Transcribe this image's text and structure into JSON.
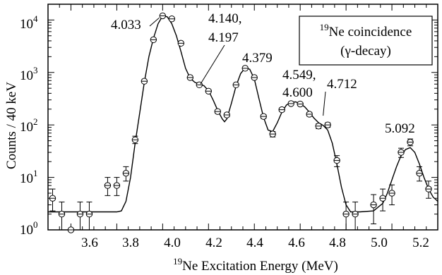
{
  "chart_data": {
    "type": "scatter",
    "xlabel_sup": "19",
    "xlabel_text": "Ne Excitation Energy (MeV)",
    "ylabel": "Counts / 40 keV",
    "xlim": [
      3.5,
      5.2
    ],
    "ylim_log10": [
      0,
      4.3
    ],
    "y_scale": "log",
    "grid": false,
    "x_ticks": [
      "3.6",
      "3.8",
      "4.0",
      "4.2",
      "4.4",
      "4.6",
      "4.8",
      "5.0",
      "5.2"
    ],
    "y_ticks": [
      {
        "base": "10",
        "exp": "0"
      },
      {
        "base": "10",
        "exp": "1"
      },
      {
        "base": "10",
        "exp": "2"
      },
      {
        "base": "10",
        "exp": "3"
      },
      {
        "base": "10",
        "exp": "4"
      }
    ],
    "legend": {
      "sup": "19",
      "line1": "Ne coincidence",
      "line2": "(γ-decay)",
      "placement": "top-right"
    },
    "annotations": [
      {
        "text": "4.033"
      },
      {
        "text": "4.140,"
      },
      {
        "text": "4.197"
      },
      {
        "text": "4.379"
      },
      {
        "text": "4.549,"
      },
      {
        "text": "4.600"
      },
      {
        "text": "4.712"
      },
      {
        "text": "5.092"
      }
    ],
    "points": [
      {
        "x": 3.52,
        "y": 4,
        "lo": 2.3,
        "hi": 6
      },
      {
        "x": 3.56,
        "y": 2,
        "lo": 1.0,
        "hi": 3.4
      },
      {
        "x": 3.6,
        "y": 1,
        "lo": 1.0,
        "hi": 1.05
      },
      {
        "x": 3.64,
        "y": 2,
        "lo": 1.0,
        "hi": 3.4
      },
      {
        "x": 3.68,
        "y": 2,
        "lo": 1.0,
        "hi": 3.4
      },
      {
        "x": 3.76,
        "y": 7,
        "lo": 4.5,
        "hi": 10
      },
      {
        "x": 3.8,
        "y": 7,
        "lo": 4.5,
        "hi": 10
      },
      {
        "x": 3.84,
        "y": 12,
        "lo": 8.5,
        "hi": 16
      },
      {
        "x": 3.88,
        "y": 52,
        "lo": 44,
        "hi": 61
      },
      {
        "x": 3.92,
        "y": 680,
        "lo": 650,
        "hi": 710
      },
      {
        "x": 3.96,
        "y": 4200,
        "lo": 4100,
        "hi": 4300
      },
      {
        "x": 4.0,
        "y": 12000,
        "lo": 11800,
        "hi": 12200
      },
      {
        "x": 4.04,
        "y": 10500,
        "lo": 10300,
        "hi": 10700
      },
      {
        "x": 4.08,
        "y": 3600,
        "lo": 3500,
        "hi": 3700
      },
      {
        "x": 4.12,
        "y": 800,
        "lo": 770,
        "hi": 830
      },
      {
        "x": 4.16,
        "y": 580,
        "lo": 560,
        "hi": 600
      },
      {
        "x": 4.2,
        "y": 440,
        "lo": 420,
        "hi": 460
      },
      {
        "x": 4.24,
        "y": 180,
        "lo": 167,
        "hi": 193
      },
      {
        "x": 4.28,
        "y": 155,
        "lo": 143,
        "hi": 167
      },
      {
        "x": 4.32,
        "y": 580,
        "lo": 560,
        "hi": 600
      },
      {
        "x": 4.36,
        "y": 1200,
        "lo": 1170,
        "hi": 1230
      },
      {
        "x": 4.4,
        "y": 800,
        "lo": 770,
        "hi": 830
      },
      {
        "x": 4.44,
        "y": 145,
        "lo": 133,
        "hi": 157
      },
      {
        "x": 4.48,
        "y": 67,
        "lo": 59,
        "hi": 75
      },
      {
        "x": 4.52,
        "y": 195,
        "lo": 181,
        "hi": 209
      },
      {
        "x": 4.56,
        "y": 255,
        "lo": 239,
        "hi": 271
      },
      {
        "x": 4.6,
        "y": 250,
        "lo": 234,
        "hi": 266
      },
      {
        "x": 4.64,
        "y": 160,
        "lo": 147,
        "hi": 173
      },
      {
        "x": 4.68,
        "y": 95,
        "lo": 85,
        "hi": 105
      },
      {
        "x": 4.72,
        "y": 100,
        "lo": 90,
        "hi": 110
      },
      {
        "x": 4.76,
        "y": 21,
        "lo": 16,
        "hi": 26
      },
      {
        "x": 4.8,
        "y": 2,
        "lo": 1.0,
        "hi": 3.4
      },
      {
        "x": 4.84,
        "y": 2,
        "lo": 1.0,
        "hi": 3.4
      },
      {
        "x": 4.92,
        "y": 3,
        "lo": 1.3,
        "hi": 4.7
      },
      {
        "x": 4.96,
        "y": 4,
        "lo": 2.3,
        "hi": 6
      },
      {
        "x": 5.0,
        "y": 5,
        "lo": 3.0,
        "hi": 7.2
      },
      {
        "x": 5.04,
        "y": 30,
        "lo": 24,
        "hi": 36
      },
      {
        "x": 5.08,
        "y": 47,
        "lo": 40,
        "hi": 54
      },
      {
        "x": 5.12,
        "y": 12,
        "lo": 8.5,
        "hi": 16
      },
      {
        "x": 5.16,
        "y": 6,
        "lo": 4.0,
        "hi": 8.5
      }
    ],
    "fit_curve": [
      [
        3.5,
        2.2
      ],
      [
        3.8,
        2.2
      ],
      [
        3.82,
        2.3
      ],
      [
        3.84,
        3.5
      ],
      [
        3.86,
        10
      ],
      [
        3.88,
        45
      ],
      [
        3.9,
        170
      ],
      [
        3.92,
        650
      ],
      [
        3.94,
        2000
      ],
      [
        3.96,
        4500
      ],
      [
        3.98,
        8500
      ],
      [
        4.0,
        12000
      ],
      [
        4.02,
        11500
      ],
      [
        4.04,
        8500
      ],
      [
        4.06,
        5000
      ],
      [
        4.08,
        2500
      ],
      [
        4.1,
        1200
      ],
      [
        4.12,
        780
      ],
      [
        4.14,
        650
      ],
      [
        4.16,
        600
      ],
      [
        4.18,
        560
      ],
      [
        4.2,
        450
      ],
      [
        4.22,
        300
      ],
      [
        4.24,
        190
      ],
      [
        4.26,
        130
      ],
      [
        4.27,
        115
      ],
      [
        4.28,
        130
      ],
      [
        4.3,
        260
      ],
      [
        4.32,
        550
      ],
      [
        4.34,
        950
      ],
      [
        4.36,
        1220
      ],
      [
        4.38,
        1150
      ],
      [
        4.4,
        750
      ],
      [
        4.42,
        320
      ],
      [
        4.44,
        140
      ],
      [
        4.46,
        80
      ],
      [
        4.48,
        75
      ],
      [
        4.5,
        110
      ],
      [
        4.52,
        175
      ],
      [
        4.54,
        240
      ],
      [
        4.56,
        270
      ],
      [
        4.58,
        275
      ],
      [
        4.6,
        255
      ],
      [
        4.62,
        220
      ],
      [
        4.64,
        175
      ],
      [
        4.66,
        135
      ],
      [
        4.68,
        110
      ],
      [
        4.7,
        98
      ],
      [
        4.72,
        80
      ],
      [
        4.74,
        45
      ],
      [
        4.76,
        18
      ],
      [
        4.78,
        6.5
      ],
      [
        4.8,
        3.0
      ],
      [
        4.82,
        2.2
      ],
      [
        4.86,
        2.2
      ],
      [
        4.92,
        2.3
      ],
      [
        4.96,
        3.2
      ],
      [
        4.98,
        5.0
      ],
      [
        5.0,
        9.0
      ],
      [
        5.02,
        16
      ],
      [
        5.04,
        26
      ],
      [
        5.06,
        34
      ],
      [
        5.08,
        37
      ],
      [
        5.1,
        30
      ],
      [
        5.12,
        18
      ],
      [
        5.14,
        10
      ],
      [
        5.16,
        6
      ],
      [
        5.18,
        4.2
      ],
      [
        5.2,
        3.5
      ]
    ]
  }
}
